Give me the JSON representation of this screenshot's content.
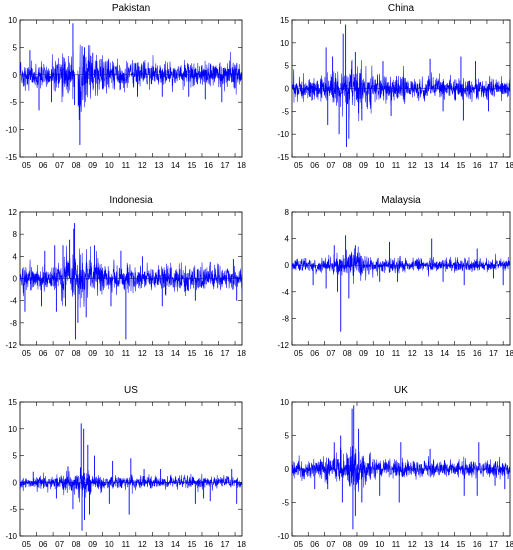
{
  "series_color": "#0000ff",
  "chart_data": [
    {
      "type": "line",
      "title": "Pakistan",
      "ylim": [
        -15,
        10
      ],
      "yticks": [
        10,
        5,
        0,
        -5,
        -10,
        -15
      ],
      "xlim": [
        2005.0,
        2018.42
      ],
      "xticks": [
        "05",
        "06",
        "07",
        "08",
        "09",
        "10",
        "11",
        "12",
        "13",
        "14",
        "15",
        "16",
        "17",
        "18"
      ],
      "grid": false,
      "series": [
        {
          "volatility": 1.4,
          "spikes": [
            [
              2005.6,
              4.5
            ],
            [
              2006.15,
              -6.5
            ],
            [
              2006.9,
              -5
            ],
            [
              2008.2,
              9.4
            ],
            [
              2008.3,
              -5.5
            ],
            [
              2008.55,
              -5.5
            ],
            [
              2008.62,
              -12.8
            ],
            [
              2008.75,
              5.2
            ],
            [
              2008.9,
              5
            ],
            [
              2009.4,
              4
            ],
            [
              2012.1,
              -4
            ],
            [
              2013.6,
              -4
            ],
            [
              2015.2,
              -4
            ],
            [
              2016.2,
              -4.5
            ],
            [
              2017.2,
              -5
            ]
          ],
          "gaps": [
            [
              2008.3,
              2008.5
            ]
          ]
        }
      ]
    },
    {
      "type": "line",
      "title": "China",
      "ylim": [
        -15,
        15
      ],
      "yticks": [
        15,
        10,
        5,
        0,
        -5,
        -10,
        -15
      ],
      "xlim": [
        2005.0,
        2018.42
      ],
      "xticks": [
        "05",
        "06",
        "07",
        "08",
        "09",
        "10",
        "11",
        "12",
        "13",
        "14",
        "15",
        "16",
        "17",
        "18"
      ],
      "grid": false,
      "series": [
        {
          "volatility": 1.5,
          "spikes": [
            [
              2007.1,
              9
            ],
            [
              2007.2,
              -8
            ],
            [
              2007.5,
              7
            ],
            [
              2007.9,
              -10
            ],
            [
              2008.15,
              12
            ],
            [
              2008.3,
              14
            ],
            [
              2008.35,
              -12.8
            ],
            [
              2008.5,
              -11
            ],
            [
              2008.9,
              8
            ],
            [
              2009.3,
              -7
            ],
            [
              2010.6,
              6
            ],
            [
              2011.1,
              -6
            ],
            [
              2013.5,
              6.5
            ],
            [
              2014.3,
              -5
            ],
            [
              2015.4,
              7
            ],
            [
              2015.55,
              -7
            ],
            [
              2016.3,
              6
            ],
            [
              2017.1,
              -5
            ]
          ],
          "gaps": []
        }
      ]
    },
    {
      "type": "line",
      "title": "Indonesia",
      "ylim": [
        -12,
        12
      ],
      "yticks": [
        12,
        8,
        4,
        0,
        -4,
        -8,
        -12
      ],
      "xlim": [
        2005.0,
        2018.42
      ],
      "xticks": [
        "05",
        "06",
        "07",
        "08",
        "09",
        "10",
        "11",
        "12",
        "13",
        "14",
        "15",
        "16",
        "17",
        "18"
      ],
      "grid": false,
      "series": [
        {
          "volatility": 1.4,
          "spikes": [
            [
              2005.3,
              -6
            ],
            [
              2006.3,
              -5
            ],
            [
              2006.5,
              5
            ],
            [
              2007.1,
              6
            ],
            [
              2007.2,
              -6
            ],
            [
              2007.6,
              6
            ],
            [
              2007.75,
              -5
            ],
            [
              2008.0,
              7
            ],
            [
              2008.25,
              9
            ],
            [
              2008.3,
              10
            ],
            [
              2008.35,
              -11
            ],
            [
              2008.5,
              -8
            ],
            [
              2009.0,
              -7
            ],
            [
              2009.5,
              6
            ],
            [
              2010.5,
              -5
            ],
            [
              2011.1,
              5
            ],
            [
              2011.4,
              -11
            ],
            [
              2012.4,
              4
            ],
            [
              2013.6,
              -5
            ],
            [
              2015.6,
              -4
            ],
            [
              2016.5,
              3
            ],
            [
              2017.9,
              3.5
            ],
            [
              2018.1,
              -4
            ]
          ],
          "gaps": []
        }
      ]
    },
    {
      "type": "line",
      "title": "Malaysia",
      "ylim": [
        -12,
        8
      ],
      "yticks": [
        8,
        4,
        0,
        -4,
        -8,
        -12
      ],
      "xlim": [
        2005.0,
        2018.42
      ],
      "xticks": [
        "05",
        "06",
        "07",
        "08",
        "09",
        "10",
        "11",
        "12",
        "13",
        "14",
        "15",
        "16",
        "17",
        "18"
      ],
      "grid": false,
      "series": [
        {
          "volatility": 0.6,
          "spikes": [
            [
              2006.3,
              -3
            ],
            [
              2007.1,
              -3.5
            ],
            [
              2007.6,
              3
            ],
            [
              2007.8,
              -4
            ],
            [
              2008.0,
              -10
            ],
            [
              2008.3,
              4.5
            ],
            [
              2008.5,
              -5
            ],
            [
              2008.9,
              3
            ],
            [
              2010.4,
              -2.5
            ],
            [
              2011.0,
              3.5
            ],
            [
              2011.5,
              -2.5
            ],
            [
              2013.6,
              4
            ],
            [
              2014.3,
              -2.5
            ],
            [
              2015.6,
              -3
            ],
            [
              2016.4,
              2.5
            ],
            [
              2017.4,
              -2
            ],
            [
              2018.0,
              -3
            ]
          ],
          "gaps": []
        }
      ]
    },
    {
      "type": "line",
      "title": "US",
      "ylim": [
        -10,
        15
      ],
      "yticks": [
        15,
        10,
        5,
        0,
        -5,
        -10
      ],
      "xlim": [
        2005.0,
        2018.42
      ],
      "xticks": [
        "05",
        "06",
        "07",
        "08",
        "09",
        "10",
        "11",
        "12",
        "13",
        "14",
        "15",
        "16",
        "17",
        "18"
      ],
      "grid": false,
      "series": [
        {
          "volatility": 0.7,
          "spikes": [
            [
              2005.8,
              2
            ],
            [
              2007.2,
              -3
            ],
            [
              2007.9,
              3
            ],
            [
              2008.2,
              -5
            ],
            [
              2008.7,
              11
            ],
            [
              2008.75,
              -9
            ],
            [
              2008.85,
              10
            ],
            [
              2008.9,
              -7
            ],
            [
              2009.1,
              7
            ],
            [
              2009.2,
              -6
            ],
            [
              2009.5,
              5
            ],
            [
              2010.4,
              -4
            ],
            [
              2010.6,
              4
            ],
            [
              2011.6,
              -6
            ],
            [
              2011.7,
              4.5
            ],
            [
              2012.5,
              2.5
            ],
            [
              2013.5,
              2.5
            ],
            [
              2015.6,
              -4
            ],
            [
              2016.1,
              -3
            ],
            [
              2016.5,
              -3.5
            ],
            [
              2017.8,
              2.5
            ],
            [
              2018.1,
              -4
            ]
          ],
          "gaps": []
        }
      ]
    },
    {
      "type": "line",
      "title": "UK",
      "ylim": [
        -10,
        10
      ],
      "yticks": [
        10,
        5,
        0,
        -5,
        -10
      ],
      "xlim": [
        2005.0,
        2018.42
      ],
      "xticks": [
        "05",
        "06",
        "07",
        "08",
        "09",
        "10",
        "11",
        "12",
        "13",
        "14",
        "15",
        "16",
        "17",
        "18"
      ],
      "grid": false,
      "series": [
        {
          "volatility": 0.8,
          "spikes": [
            [
              2006.4,
              -3
            ],
            [
              2007.2,
              -3
            ],
            [
              2007.6,
              4
            ],
            [
              2008.0,
              5
            ],
            [
              2008.1,
              -5
            ],
            [
              2008.7,
              9
            ],
            [
              2008.75,
              -9
            ],
            [
              2008.8,
              9.5
            ],
            [
              2008.9,
              -7
            ],
            [
              2009.1,
              6
            ],
            [
              2009.3,
              -5
            ],
            [
              2010.4,
              -4
            ],
            [
              2011.6,
              -5
            ],
            [
              2011.7,
              4
            ],
            [
              2013.5,
              3
            ],
            [
              2015.6,
              -4
            ],
            [
              2016.4,
              -4
            ],
            [
              2016.5,
              4
            ],
            [
              2017.5,
              -2.5
            ],
            [
              2018.1,
              -3
            ]
          ],
          "gaps": []
        }
      ]
    }
  ]
}
